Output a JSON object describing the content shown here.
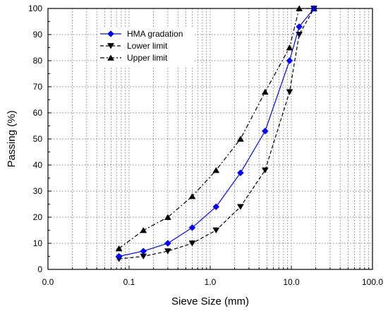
{
  "chart_data": {
    "type": "line",
    "xlabel": "Sieve Size (mm)",
    "ylabel": "Passing (%)",
    "x_scale": "log",
    "xlim": [
      0.01,
      100
    ],
    "ylim": [
      0,
      100
    ],
    "x_ticks": [
      0.01,
      0.1,
      1,
      10,
      100
    ],
    "x_tick_labels": [
      "0.0",
      "0.1",
      "1.0",
      "10.0",
      "100.0"
    ],
    "y_ticks": [
      0,
      10,
      20,
      30,
      40,
      50,
      60,
      70,
      80,
      90,
      100
    ],
    "y_tick_labels": [
      "0",
      "10",
      "20",
      "30",
      "40",
      "50",
      "60",
      "70",
      "80",
      "90",
      "100"
    ],
    "grid": true,
    "legend_position": "top-left",
    "series": [
      {
        "name": "HMA gradation",
        "color": "#0000ff",
        "line": "solid",
        "marker": "diamond",
        "x": [
          0.075,
          0.15,
          0.3,
          0.6,
          1.18,
          2.36,
          4.75,
          9.5,
          12.5,
          19
        ],
        "y": [
          5,
          7,
          10,
          16,
          24,
          37,
          53,
          80,
          93,
          100
        ]
      },
      {
        "name": "Lower limit",
        "color": "#000000",
        "line": "dash",
        "marker": "triangle-down",
        "x": [
          0.075,
          0.15,
          0.3,
          0.6,
          1.18,
          2.36,
          4.75,
          9.5,
          12.5,
          19
        ],
        "y": [
          4,
          5,
          7,
          10,
          15,
          24,
          38,
          68,
          90,
          100
        ]
      },
      {
        "name": "Upper limit",
        "color": "#000000",
        "line": "dashdot",
        "marker": "triangle-up",
        "x": [
          0.075,
          0.15,
          0.3,
          0.6,
          1.18,
          2.36,
          4.75,
          9.5,
          12.5,
          19
        ],
        "y": [
          8,
          15,
          20,
          28,
          38,
          50,
          68,
          85,
          100,
          100
        ]
      }
    ]
  }
}
